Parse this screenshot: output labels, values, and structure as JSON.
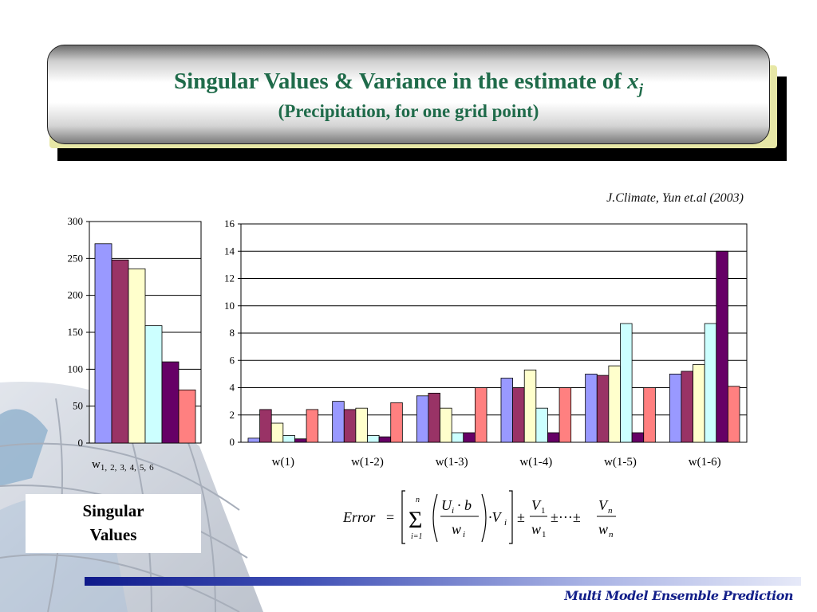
{
  "slide": {
    "title_main": "Singular Values & Variance in the estimate of ",
    "title_var": "x",
    "title_sub_var": "j",
    "subtitle": "(Precipitation, for one grid point)",
    "citation": "J.Climate, Yun et.al (2003)",
    "left_label_line1": "Singular",
    "left_label_line2": "Values",
    "footer": "Multi Model Ensemble Prediction",
    "formula": {
      "lhs": "Error",
      "equals": "=",
      "sum_upper": "n",
      "sum_lower": "i=1",
      "U": "U",
      "sub_i": "i",
      "dot_b": "· b",
      "w": "w",
      "dot_V": "·V",
      "pm": "±",
      "V": "V",
      "sub1": "1",
      "subn": "n",
      "dots": "±···±"
    },
    "colors": {
      "title": "#1f6b4a",
      "footer_bar": "#0f1a8a",
      "footer_text": "#14208a"
    }
  },
  "chart_data": [
    {
      "type": "bar",
      "categories": [
        "w1,2,3,4,5,6"
      ],
      "x_tick_main": "w",
      "x_tick_subs": [
        "1,",
        "2,",
        "3,",
        "4,",
        "5,",
        "6"
      ],
      "series": [
        {
          "values": [
            270
          ],
          "color": "#9999ff"
        },
        {
          "values": [
            248
          ],
          "color": "#993366"
        },
        {
          "values": [
            236
          ],
          "color": "#ffffcc"
        },
        {
          "values": [
            159
          ],
          "color": "#ccffff"
        },
        {
          "values": [
            110
          ],
          "color": "#660066"
        },
        {
          "values": [
            72
          ],
          "color": "#ff8080"
        }
      ],
      "ylim": [
        0,
        300
      ],
      "yticks": [
        "0",
        "50",
        "100",
        "150",
        "200",
        "250",
        "300"
      ],
      "grid": true
    },
    {
      "type": "bar",
      "categories": [
        "w(1)",
        "w(1-2)",
        "w(1-3)",
        "w(1-4)",
        "w(1-5)",
        "w(1-6)"
      ],
      "series": [
        {
          "values": [
            0.3,
            3.0,
            3.4,
            4.7,
            5.0,
            5.0
          ],
          "color": "#9999ff"
        },
        {
          "values": [
            2.4,
            2.4,
            3.6,
            4.0,
            4.9,
            5.2
          ],
          "color": "#993366"
        },
        {
          "values": [
            1.4,
            2.5,
            2.5,
            5.3,
            5.6,
            5.7
          ],
          "color": "#ffffcc"
        },
        {
          "values": [
            0.5,
            0.5,
            0.7,
            2.5,
            8.7,
            8.7
          ],
          "color": "#ccffff"
        },
        {
          "values": [
            0.25,
            0.4,
            0.7,
            0.7,
            0.7,
            14.0
          ],
          "color": "#660066"
        },
        {
          "values": [
            2.4,
            2.9,
            4.0,
            4.0,
            4.0,
            4.1
          ],
          "color": "#ff8080"
        }
      ],
      "ylim": [
        0,
        16
      ],
      "yticks": [
        "0",
        "2",
        "4",
        "6",
        "8",
        "10",
        "12",
        "14",
        "16"
      ],
      "grid": true
    }
  ]
}
